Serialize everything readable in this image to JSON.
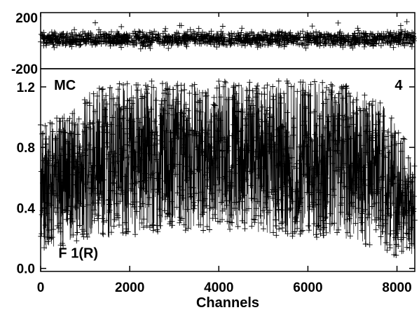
{
  "chart_data": [
    {
      "type": "scatter",
      "panel": "residuals",
      "marker": "plus",
      "xlim": [
        0,
        8400
      ],
      "ylim": [
        -200,
        200
      ],
      "y_ticks": [
        {
          "value": 200,
          "label": "200"
        },
        {
          "value": -200,
          "label": "-200"
        }
      ],
      "x_ticks": [],
      "noise_range": [
        -60,
        80
      ],
      "approx_points": 1500,
      "grid": false
    },
    {
      "type": "line",
      "panel": "spectrum",
      "marker": "plus",
      "xlabel": "Channels",
      "ylabel": "",
      "xlim": [
        0,
        8400
      ],
      "ylim": [
        -0.02,
        1.32
      ],
      "x_ticks": [
        {
          "value": 0,
          "label": "0"
        },
        {
          "value": 2000,
          "label": "2000"
        },
        {
          "value": 4000,
          "label": "4000"
        },
        {
          "value": 6000,
          "label": "6000"
        },
        {
          "value": 8000,
          "label": "8000"
        }
      ],
      "y_ticks": [
        {
          "value": 0.0,
          "label": "0.0"
        },
        {
          "value": 0.4,
          "label": "0.4"
        },
        {
          "value": 0.8,
          "label": "0.8"
        },
        {
          "value": 1.2,
          "label": "1.2"
        }
      ],
      "envelope": {
        "x": [
          0,
          400,
          800,
          1200,
          1600,
          2000,
          2800,
          3600,
          4400,
          5200,
          6000,
          6800,
          7400,
          7800,
          8100,
          8400
        ],
        "lower": [
          0.1,
          0.14,
          0.16,
          0.2,
          0.18,
          0.22,
          0.24,
          0.25,
          0.26,
          0.22,
          0.2,
          0.18,
          0.15,
          0.1,
          0.06,
          0.02
        ],
        "upper": [
          0.95,
          1.0,
          1.08,
          1.2,
          1.22,
          1.24,
          1.24,
          1.24,
          1.24,
          1.24,
          1.24,
          1.22,
          1.15,
          1.05,
          0.9,
          0.7
        ]
      },
      "approx_points": 2500,
      "annotations": [
        {
          "text": "MC",
          "x": 300,
          "y": 1.18
        },
        {
          "text": "4",
          "x": 7950,
          "y": 1.18
        },
        {
          "text": "F 1(R)",
          "x": 400,
          "y": 0.07
        }
      ],
      "grid": false
    }
  ]
}
